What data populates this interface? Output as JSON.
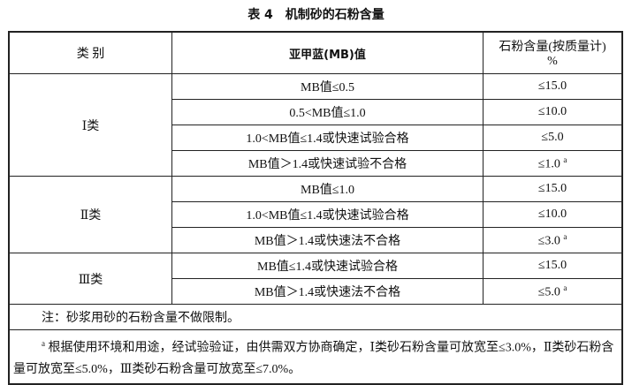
{
  "title": "表 4　机制砂的石粉含量",
  "header": {
    "category": "类 别",
    "mb": "亚甲蓝(MB)值",
    "content_line1": "石粉含量(按质量计)",
    "content_line2": "%"
  },
  "groups": [
    {
      "category": "Ⅰ类",
      "rows": [
        {
          "mb": "MB值≤0.5",
          "value": "≤15.0",
          "sup": ""
        },
        {
          "mb": "0.5<MB值≤1.0",
          "value": "≤10.0",
          "sup": ""
        },
        {
          "mb": "1.0<MB值≤1.4或快速试验合格",
          "value": "≤5.0",
          "sup": ""
        },
        {
          "mb": "MB值＞1.4或快速试验不合格",
          "value": "≤1.0",
          "sup": "a"
        }
      ]
    },
    {
      "category": "Ⅱ类",
      "rows": [
        {
          "mb": "MB值≤1.0",
          "value": "≤15.0",
          "sup": ""
        },
        {
          "mb": "1.0<MB值≤1.4或快速试验合格",
          "value": "≤10.0",
          "sup": ""
        },
        {
          "mb": "MB值＞1.4或快速法不合格",
          "value": "≤3.0",
          "sup": "a"
        }
      ]
    },
    {
      "category": "Ⅲ类",
      "rows": [
        {
          "mb": "MB值≤1.4或快速试验合格",
          "value": "≤15.0",
          "sup": ""
        },
        {
          "mb": "MB值＞1.4或快速法不合格",
          "value": "≤5.0",
          "sup": "a"
        }
      ]
    }
  ],
  "note": "注：砂浆用砂的石粉含量不做限制。",
  "footnote": {
    "mark": "a",
    "text": " 根据使用环境和用途，经试验验证，由供需双方协商确定，Ⅰ类砂石粉含量可放宽至≤3.0%，Ⅱ类砂石粉含量可放宽至≤5.0%，Ⅲ类砂石粉含量可放宽至≤7.0%。"
  }
}
